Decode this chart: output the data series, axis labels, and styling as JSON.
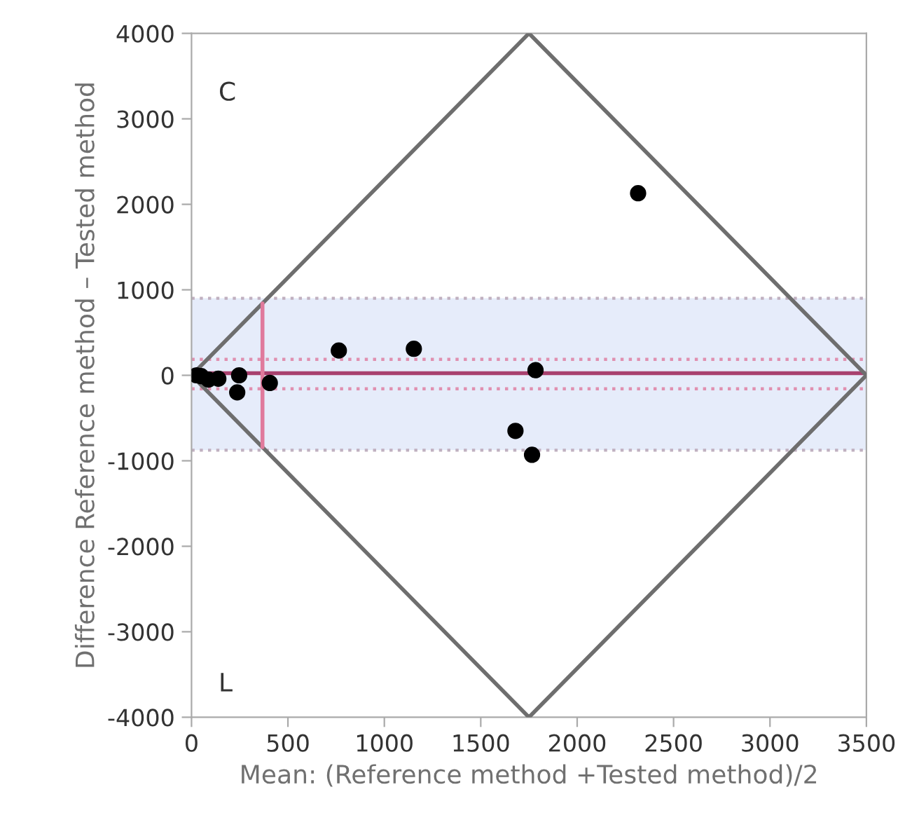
{
  "chart_data": {
    "type": "scatter",
    "xlabel": "Mean: (Reference method +Tested method)/2",
    "ylabel": "Difference Reference method – Tested method",
    "annotations": [
      "C",
      "L"
    ],
    "series": [
      {
        "color": "#000000",
        "x": [
          2316,
          764,
          1153,
          1784,
          1680,
          1766,
          406,
          247,
          237,
          139,
          88,
          25,
          50
        ],
        "values": [
          2130,
          290,
          310,
          60,
          -650,
          -930,
          -90,
          0,
          -200,
          -40,
          -50,
          0,
          -10
        ]
      },
      {
        "type": "line",
        "marker": "none",
        "color": "#6e6e6e",
        "x": [
          0,
          1750,
          3500
        ],
        "values": [
          0,
          4000,
          0
        ]
      },
      {
        "type": "line",
        "marker": "none",
        "color": "#6e6e6e",
        "x": [
          0,
          1750,
          3500
        ],
        "values": [
          0,
          -4000,
          0
        ]
      },
      {
        "type": "line",
        "marker": "none",
        "color": "#e07a9c",
        "x": [
          368,
          368
        ],
        "values": [
          -840,
          840
        ]
      }
    ],
    "ref_lines": [
      {
        "axis": "y",
        "value": 25,
        "color": "#a8406e",
        "line_style": "solid"
      },
      {
        "axis": "y",
        "value": 187,
        "color": "#e090b0",
        "line_style": "dotted"
      },
      {
        "axis": "y",
        "value": -158,
        "color": "#e090b0",
        "line_style": "dotted"
      },
      {
        "axis": "y",
        "value": 901,
        "color": "#c0b0c0",
        "line_style": "dotted"
      },
      {
        "axis": "y",
        "value": -876,
        "color": "#c0b0c0",
        "line_style": "dotted"
      }
    ],
    "bands": [
      {
        "axis": "y",
        "from": -876,
        "to": 901,
        "color": "#e6ecfa"
      }
    ],
    "xlim": [
      0,
      3500
    ],
    "xticks": [
      0,
      500,
      1000,
      1500,
      2000,
      2500,
      3000,
      3500
    ],
    "ylim": [
      -4000,
      4000
    ],
    "yticks": [
      -4000,
      -3000,
      -2000,
      -1000,
      0,
      1000,
      2000,
      3000,
      4000
    ],
    "grid": false,
    "marker": "circle"
  }
}
